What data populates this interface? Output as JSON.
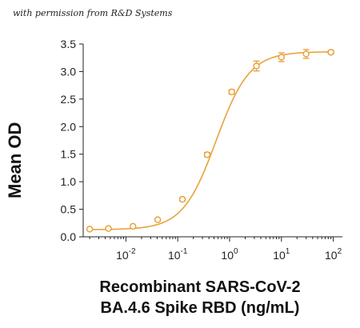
{
  "watermark": "with permission from R&D Systems",
  "chart_data": {
    "type": "line",
    "xlabel_line1": "Recombinant SARS-CoV-2",
    "xlabel_line2": "BA.4.6 Spike RBD (ng/mL)",
    "ylabel": "Mean OD",
    "x_scale": "log",
    "xlim": [
      0.0015,
      150
    ],
    "ylim": [
      0,
      3.5
    ],
    "y_ticks": [
      "0.0",
      "0.5",
      "1.0",
      "1.5",
      "2.0",
      "2.5",
      "3.0",
      "3.5"
    ],
    "x_ticks": [
      {
        "base": "10",
        "exp": "-2",
        "value": 0.01
      },
      {
        "base": "10",
        "exp": "-1",
        "value": 0.1
      },
      {
        "base": "10",
        "exp": "0",
        "value": 1
      },
      {
        "base": "10",
        "exp": "1",
        "value": 10
      },
      {
        "base": "10",
        "exp": "2",
        "value": 100
      }
    ],
    "grid": false,
    "color": "#E8A33D",
    "points": [
      {
        "x": 0.002,
        "y": 0.14,
        "err": 0.0
      },
      {
        "x": 0.0046,
        "y": 0.15,
        "err": 0.0
      },
      {
        "x": 0.0137,
        "y": 0.19,
        "err": 0.0
      },
      {
        "x": 0.041,
        "y": 0.31,
        "err": 0.02
      },
      {
        "x": 0.123,
        "y": 0.68,
        "err": 0.03
      },
      {
        "x": 0.37,
        "y": 1.49,
        "err": 0.04
      },
      {
        "x": 1.1,
        "y": 2.63,
        "err": 0.04
      },
      {
        "x": 3.3,
        "y": 3.1,
        "err": 0.09
      },
      {
        "x": 10,
        "y": 3.26,
        "err": 0.08
      },
      {
        "x": 30,
        "y": 3.32,
        "err": 0.08
      },
      {
        "x": 90,
        "y": 3.35,
        "err": 0.03
      }
    ]
  }
}
